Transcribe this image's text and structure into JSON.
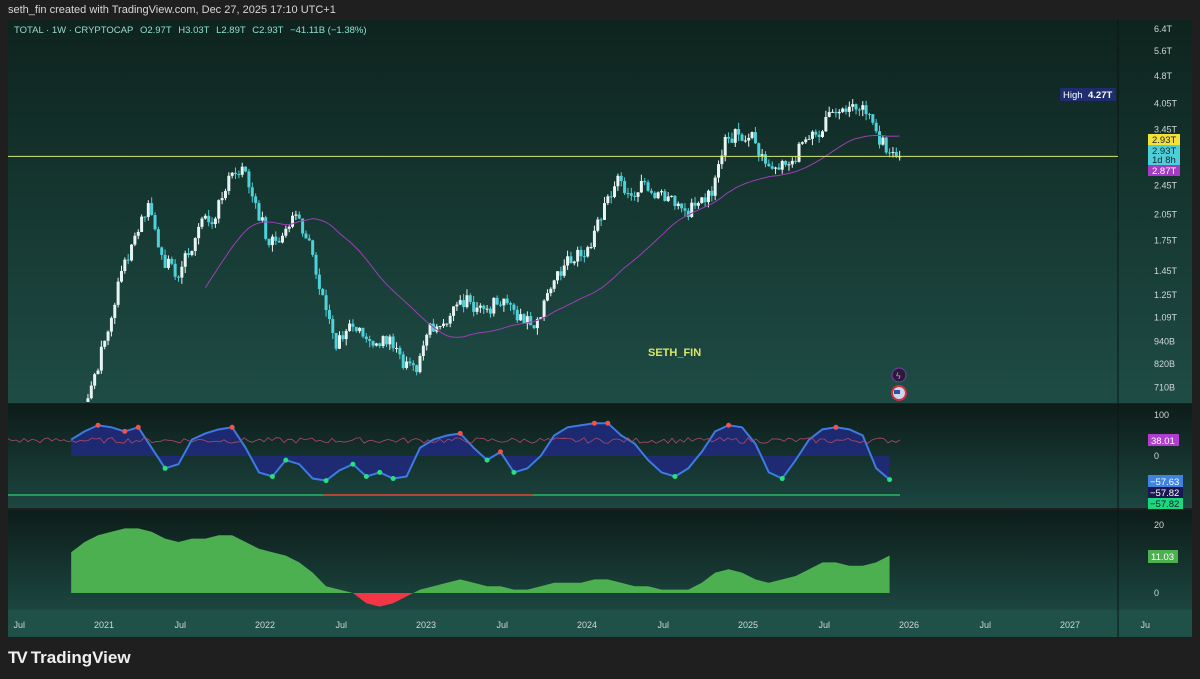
{
  "credit": "seth_fin created with TradingView.com, Dec 27, 2025 17:10 UTC+1",
  "legend": {
    "symbol": "TOTAL · 1W · CRYPTOCAP",
    "open": "O2.97T",
    "high": "H3.03T",
    "low": "L2.89T",
    "close": "C2.93T",
    "change": "−41.11B (−1.38%)"
  },
  "watermark": "SETH_FIN",
  "brand": "TradingView",
  "colors": {
    "bull": "#e8f4f2",
    "bear": "#4fd1d9",
    "ma": "#9b3fb5",
    "osc_fill": "#1f2a7a",
    "osc_line": "#3d7be0",
    "area_pos": "#4caf50",
    "area_neg": "#f23645",
    "hline": "#d7e86a"
  },
  "labels": {
    "high_tag": "High",
    "high_value": "4.27T",
    "last_price": "2.93T",
    "countdown_price": "2.93T",
    "countdown": "1d 8h",
    "ma_value": "2.87T",
    "osc_signal": "38.01",
    "osc_value": "−57.63",
    "osc_value2": "−57.82",
    "osc_value3": "−57.82",
    "area_value": "11.03"
  },
  "chart_data": [
    {
      "type": "candlestick",
      "scale": "log",
      "timeframe": "1W",
      "price_ticks": [
        "6.4T",
        "5.6T",
        "4.8T",
        "4.05T",
        "3.45T",
        "2.45T",
        "2.05T",
        "1.75T",
        "1.45T",
        "1.25T",
        "1.09T",
        "940B",
        "820B",
        "710B"
      ],
      "price_tick_values": [
        6.4,
        5.6,
        4.8,
        4.05,
        3.45,
        2.45,
        2.05,
        1.75,
        1.45,
        1.25,
        1.09,
        0.94,
        0.82,
        0.71
      ],
      "ylim_trillions": [
        0.69,
        6.6
      ],
      "x_ticks": [
        "Jul",
        "2021",
        "Jul",
        "2022",
        "Jul",
        "2023",
        "Jul",
        "2024",
        "Jul",
        "2025",
        "Jul",
        "2026",
        "Jul",
        "2027",
        "Ju"
      ],
      "monthly_close_start": "2020-11",
      "monthly_close_trillions": [
        0.58,
        0.77,
        1.0,
        1.45,
        1.8,
        2.2,
        1.6,
        1.4,
        1.6,
        2.0,
        2.0,
        2.6,
        2.75,
        2.2,
        1.7,
        1.8,
        2.05,
        1.75,
        1.25,
        0.9,
        1.05,
        0.97,
        0.93,
        0.97,
        0.8,
        0.78,
        1.05,
        1.05,
        1.18,
        1.2,
        1.15,
        1.18,
        1.18,
        1.05,
        1.08,
        1.3,
        1.5,
        1.65,
        1.68,
        2.2,
        2.6,
        2.3,
        2.5,
        2.35,
        2.3,
        2.1,
        2.2,
        2.3,
        3.3,
        3.35,
        3.4,
        2.8,
        2.7,
        2.85,
        3.25,
        3.3,
        3.85,
        3.85,
        3.9,
        3.6,
        3.0,
        2.93
      ],
      "horizontal_line": 2.93
    },
    {
      "type": "area",
      "pane": "oscillator",
      "y_ticks": [
        "100",
        "0"
      ],
      "y_tick_values": [
        100,
        0
      ],
      "monthly_values": [
        40,
        60,
        75,
        70,
        60,
        70,
        20,
        -30,
        -20,
        40,
        55,
        65,
        70,
        20,
        -40,
        -50,
        -10,
        -20,
        -55,
        -60,
        -35,
        -20,
        -50,
        -40,
        -55,
        -50,
        20,
        40,
        50,
        55,
        20,
        -10,
        10,
        -40,
        -30,
        0,
        50,
        70,
        75,
        80,
        80,
        50,
        30,
        -10,
        -40,
        -50,
        -30,
        10,
        60,
        75,
        70,
        30,
        -40,
        -55,
        -10,
        40,
        65,
        70,
        65,
        50,
        -30,
        -57.63
      ]
    },
    {
      "type": "area",
      "pane": "lower",
      "y_ticks": [
        "20",
        "0"
      ],
      "y_tick_values": [
        20,
        0
      ],
      "monthly_values": [
        12,
        15,
        17,
        18,
        19,
        19,
        18,
        16,
        15,
        16,
        16,
        17,
        17,
        15,
        13,
        12,
        11,
        9,
        6,
        2,
        1,
        0,
        -3,
        -4,
        -3,
        -1,
        1,
        2,
        3,
        4,
        3,
        2,
        2,
        1,
        1,
        2,
        3,
        3,
        3,
        4,
        4,
        3,
        2,
        2,
        1,
        1,
        1,
        3,
        6,
        7,
        6,
        4,
        3,
        4,
        5,
        7,
        9,
        9,
        8,
        8,
        9,
        11.03
      ]
    }
  ]
}
